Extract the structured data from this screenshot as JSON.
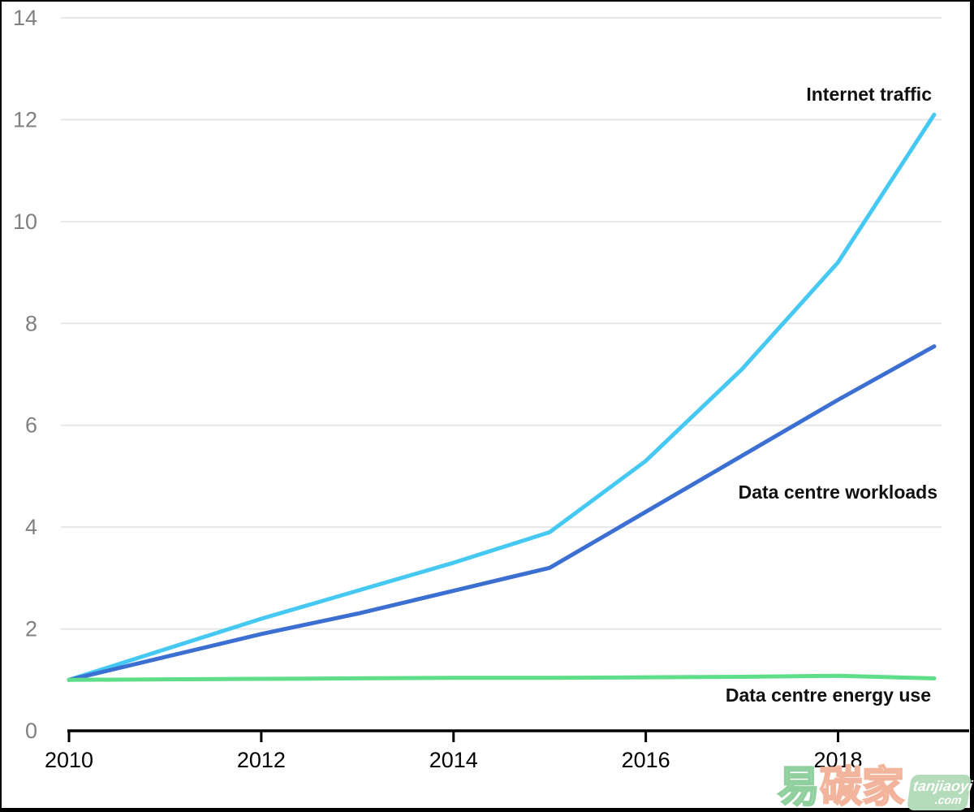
{
  "chart_data": {
    "type": "line",
    "title": "",
    "xlabel": "",
    "ylabel": "",
    "x": [
      2010,
      2011,
      2012,
      2013,
      2014,
      2015,
      2016,
      2017,
      2018,
      2019
    ],
    "x_tick_labels": [
      "2010",
      "2012",
      "2014",
      "2016",
      "2018"
    ],
    "x_ticks": [
      2010,
      2012,
      2014,
      2016,
      2018
    ],
    "y_ticks": [
      0,
      2,
      4,
      6,
      8,
      10,
      12,
      14
    ],
    "ylim": [
      0,
      14
    ],
    "xlim": [
      2010,
      2019
    ],
    "grid": "horizontal",
    "legend_position": "inline-end-of-line-labels",
    "series": [
      {
        "name": "Internet traffic",
        "color": "#45C9F2",
        "values": [
          1.0,
          1.6,
          2.2,
          2.75,
          3.3,
          3.9,
          5.3,
          7.1,
          9.2,
          12.1
        ]
      },
      {
        "name": "Data centre workloads",
        "color": "#3C6FD2",
        "values": [
          1.0,
          1.45,
          1.9,
          2.3,
          2.75,
          3.2,
          4.3,
          5.4,
          6.5,
          7.55
        ]
      },
      {
        "name": "Data centre energy use",
        "color": "#5EDE89",
        "values": [
          1.0,
          1.01,
          1.02,
          1.03,
          1.04,
          1.04,
          1.05,
          1.06,
          1.08,
          1.03
        ]
      }
    ]
  },
  "style": {
    "gridline_color": "#e7e7e7",
    "y_tick_color": "#808080",
    "x_tick_color": "#000000",
    "axis_color": "#000000",
    "frame_border_color": "#000000",
    "background": "#ffffff"
  },
  "watermark": {
    "char_1": "易",
    "char_2": "碳",
    "char_3": "家",
    "badge_line1": "tanjiaoyi",
    "badge_line2": ".com",
    "char1_color": "#90cf9e",
    "chars_color": "#f2b49c",
    "badge_bg": "#b4dcba",
    "badge_text_color": "#ffffff"
  }
}
